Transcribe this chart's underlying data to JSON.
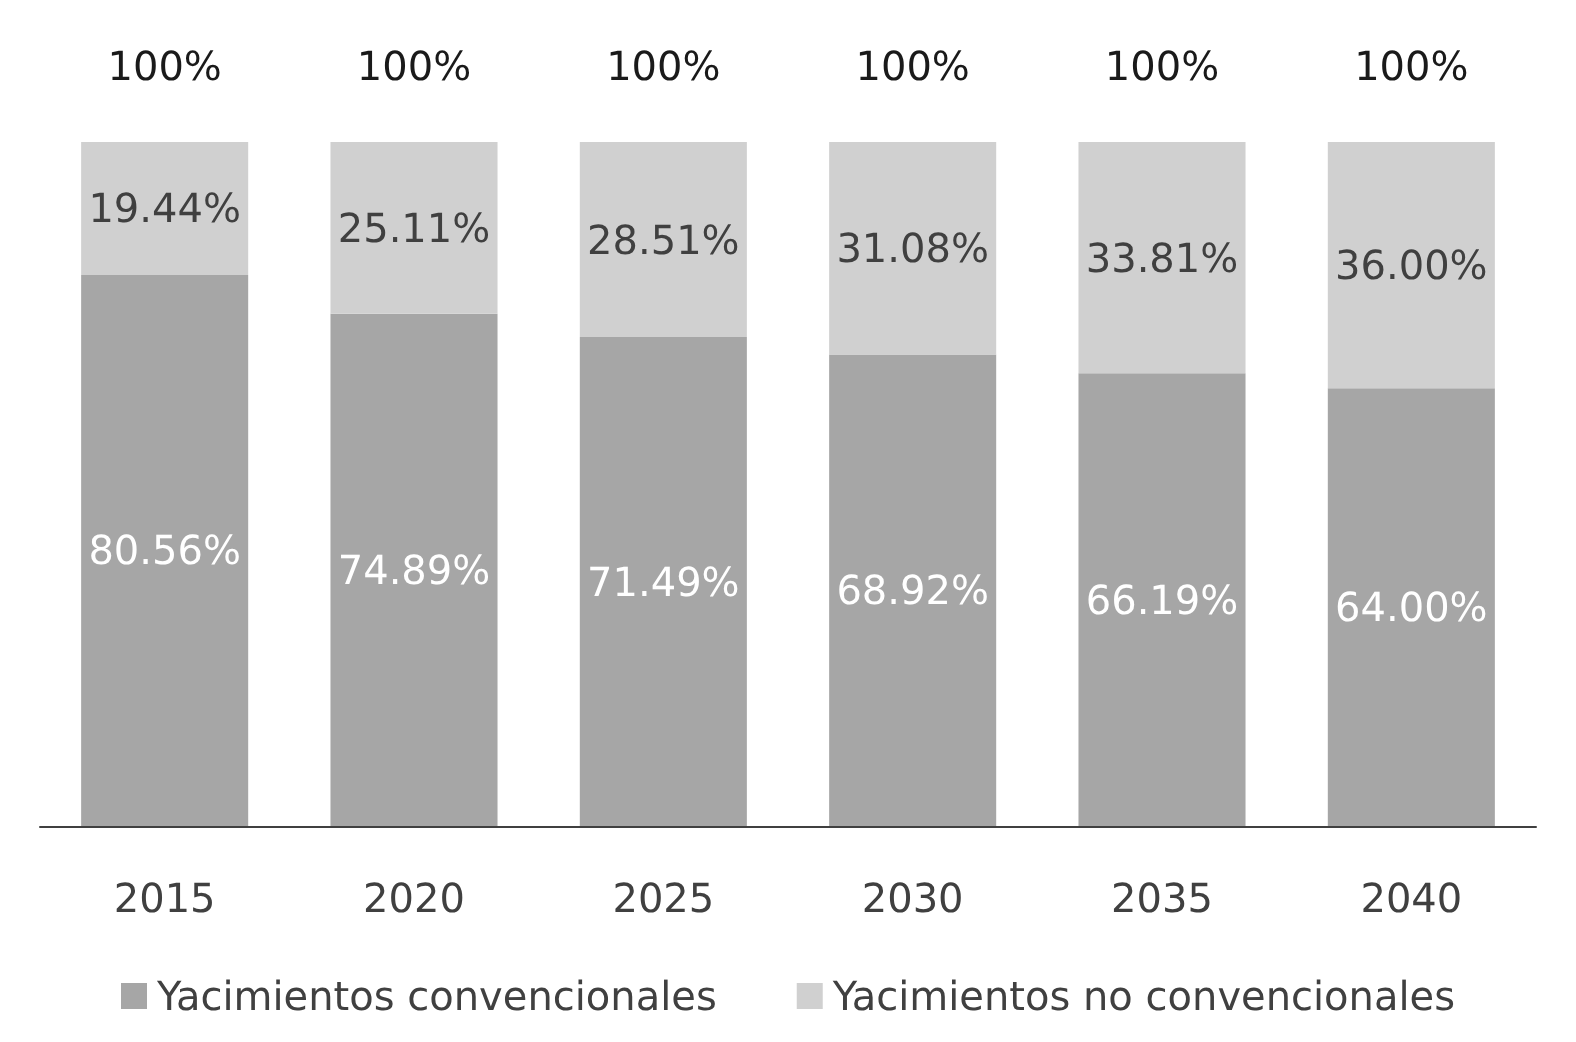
{
  "chart_data": {
    "type": "bar",
    "stacked": true,
    "categories": [
      "2015",
      "2020",
      "2025",
      "2030",
      "2035",
      "2040"
    ],
    "series": [
      {
        "name": "Yacimientos convencionales",
        "color": "#a6a6a6",
        "values": [
          80.56,
          74.89,
          71.49,
          68.92,
          66.19,
          64.0
        ],
        "value_labels": [
          "80.56%",
          "74.89%",
          "71.49%",
          "68.92%",
          "66.19%",
          "64.00%"
        ]
      },
      {
        "name": "Yacimientos no convencionales",
        "color": "#d0d0d0",
        "values": [
          19.44,
          25.11,
          28.51,
          31.08,
          33.81,
          36.0
        ],
        "value_labels": [
          "19.44%",
          "25.11%",
          "28.51%",
          "31.08%",
          "33.81%",
          "36.00%"
        ]
      }
    ],
    "totals": [
      "100%",
      "100%",
      "100%",
      "100%",
      "100%",
      "100%"
    ],
    "legend": "bottom"
  }
}
